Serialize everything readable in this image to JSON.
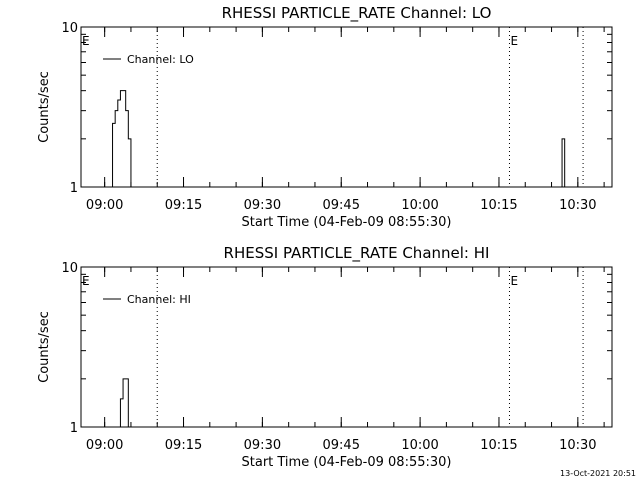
{
  "footer_timestamp": "13-Oct-2021 20:51",
  "chart_data": [
    {
      "type": "line",
      "title": "RHESSI PARTICLE_RATE Channel: LO",
      "xlabel": "Start Time (04-Feb-09 08:55:30)",
      "ylabel": "Counts/sec",
      "y_scale": "log",
      "ylim": [
        1,
        10
      ],
      "y_ticks": [
        "1",
        "10"
      ],
      "xlim": [
        "08:55:30",
        "10:36:30"
      ],
      "x_ticks": [
        "09:00",
        "09:15",
        "09:30",
        "09:45",
        "10:00",
        "10:15",
        "10:30"
      ],
      "grid": false,
      "legend": "top-left",
      "markers": [
        {
          "label": "E",
          "time": "08:55:30"
        },
        {
          "label": "E",
          "time": "10:17:00"
        }
      ],
      "vlines_dotted": [
        "09:10:00",
        "10:17:00",
        "10:31:00"
      ],
      "series": [
        {
          "name": "Channel: LO",
          "x": [
            "09:01:00",
            "09:01:30",
            "09:02:00",
            "09:02:30",
            "09:03:00",
            "09:03:30",
            "09:04:00",
            "09:04:30",
            "09:05:00",
            "09:05:30",
            "10:26:30",
            "10:27:00",
            "10:27:30"
          ],
          "y": [
            1.0,
            2.5,
            3.0,
            3.5,
            4.0,
            4.0,
            3.0,
            2.0,
            1.0,
            1.0,
            1.0,
            2.0,
            1.0
          ]
        }
      ]
    },
    {
      "type": "line",
      "title": "RHESSI PARTICLE_RATE Channel: HI",
      "xlabel": "Start Time (04-Feb-09 08:55:30)",
      "ylabel": "Counts/sec",
      "y_scale": "log",
      "ylim": [
        1,
        10
      ],
      "y_ticks": [
        "1",
        "10"
      ],
      "xlim": [
        "08:55:30",
        "10:36:30"
      ],
      "x_ticks": [
        "09:00",
        "09:15",
        "09:30",
        "09:45",
        "10:00",
        "10:15",
        "10:30"
      ],
      "grid": false,
      "legend": "top-left",
      "markers": [
        {
          "label": "E",
          "time": "08:55:30"
        },
        {
          "label": "E",
          "time": "10:17:00"
        }
      ],
      "vlines_dotted": [
        "09:10:00",
        "10:17:00",
        "10:31:00"
      ],
      "series": [
        {
          "name": "Channel: HI",
          "x": [
            "09:02:30",
            "09:03:00",
            "09:03:30",
            "09:04:00",
            "09:04:30"
          ],
          "y": [
            1.0,
            1.5,
            2.0,
            2.0,
            1.0
          ]
        }
      ]
    }
  ]
}
